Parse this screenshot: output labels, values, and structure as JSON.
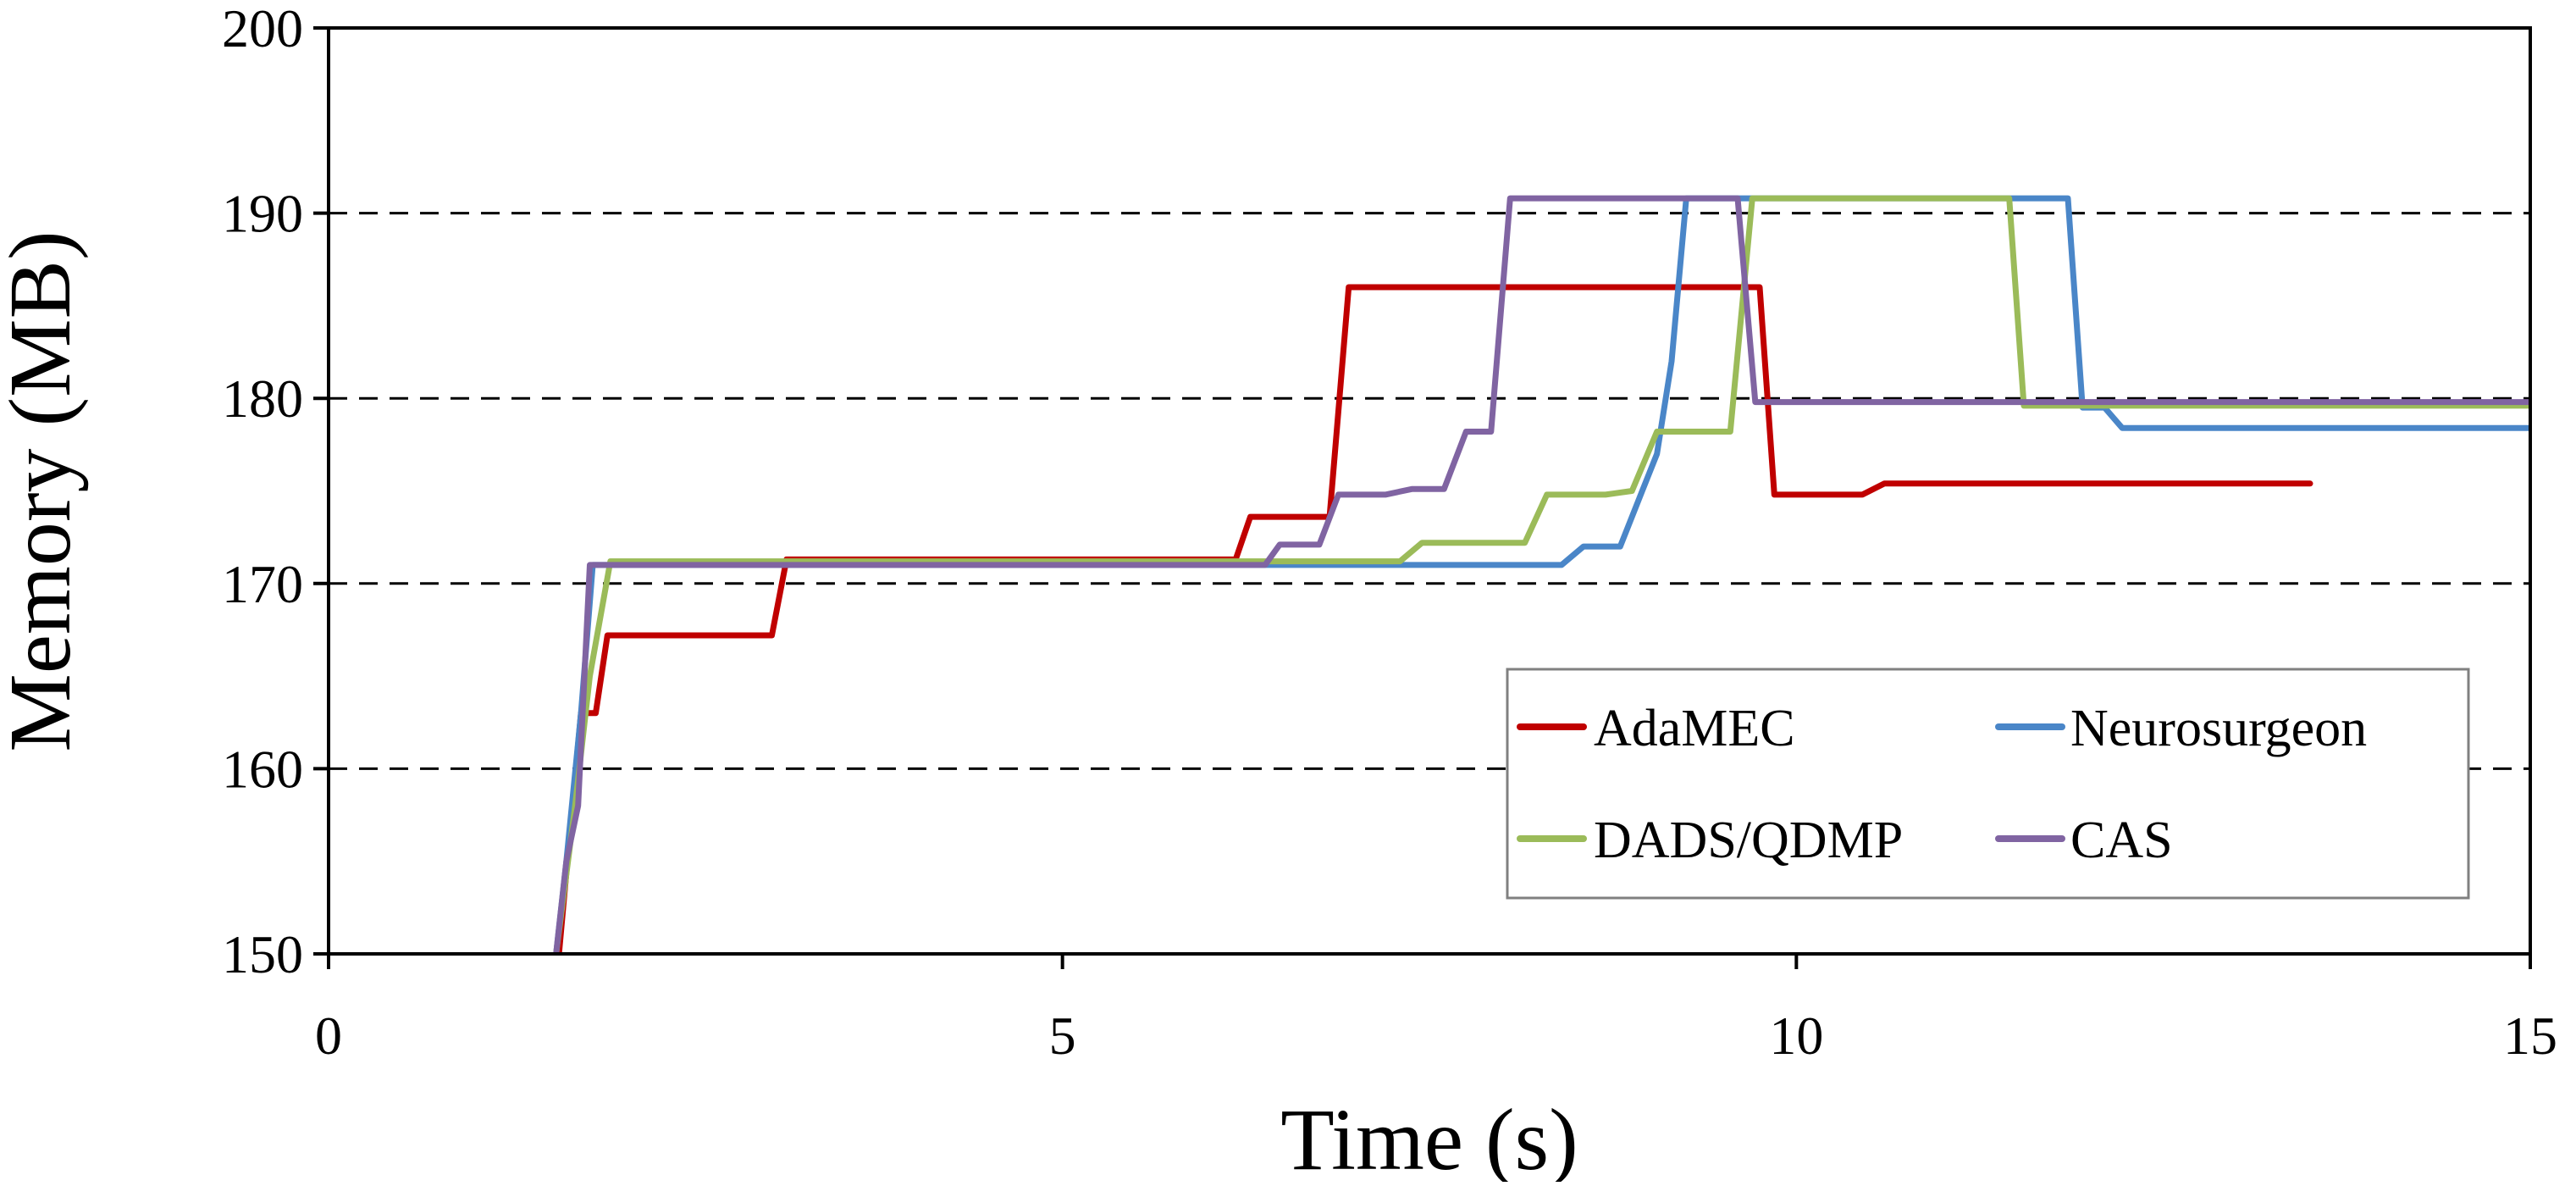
{
  "chart_data": {
    "type": "line",
    "title": "",
    "xlabel": "Time (s)",
    "ylabel": "Memory (MB)",
    "xlim": [
      0,
      15
    ],
    "ylim": [
      150,
      200
    ],
    "xticks": [
      0,
      5,
      10,
      15
    ],
    "yticks": [
      150,
      160,
      170,
      180,
      190,
      200
    ],
    "xtick_labels": [
      "0",
      "5",
      "10",
      "15"
    ],
    "ytick_labels": [
      "150",
      "160",
      "170",
      "180",
      "190",
      "200"
    ],
    "grid": "horizontal dashed at 160, 170, 180, 190",
    "legend_position": "bottom-right",
    "series": [
      {
        "name": "AdaMEC",
        "color": "#C00000",
        "points": [
          [
            1.57,
            150
          ],
          [
            1.65,
            157
          ],
          [
            1.72,
            163
          ],
          [
            1.82,
            163
          ],
          [
            1.9,
            167.2
          ],
          [
            3.02,
            167.2
          ],
          [
            3.12,
            171.3
          ],
          [
            6.18,
            171.3
          ],
          [
            6.28,
            173.6
          ],
          [
            6.82,
            173.6
          ],
          [
            6.95,
            186
          ],
          [
            9.75,
            186
          ],
          [
            9.85,
            174.8
          ],
          [
            10.45,
            174.8
          ],
          [
            10.6,
            175.4
          ],
          [
            13.5,
            175.4
          ]
        ]
      },
      {
        "name": "Neurosurgeon",
        "color": "#4A86C8",
        "points": [
          [
            1.55,
            150
          ],
          [
            1.62,
            155
          ],
          [
            1.72,
            163
          ],
          [
            1.8,
            171
          ],
          [
            8.4,
            171
          ],
          [
            8.55,
            172
          ],
          [
            8.8,
            172
          ],
          [
            8.95,
            175
          ],
          [
            9.05,
            177
          ],
          [
            9.15,
            182
          ],
          [
            9.25,
            190.8
          ],
          [
            11.85,
            190.8
          ],
          [
            11.95,
            179.5
          ],
          [
            12.1,
            179.5
          ],
          [
            12.22,
            178.4
          ],
          [
            15,
            178.4
          ]
        ]
      },
      {
        "name": "DADS/QDMP",
        "color": "#9BBB59",
        "points": [
          [
            1.55,
            150
          ],
          [
            1.68,
            158
          ],
          [
            1.78,
            165
          ],
          [
            1.92,
            171.2
          ],
          [
            7.3,
            171.2
          ],
          [
            7.45,
            172.2
          ],
          [
            8.15,
            172.2
          ],
          [
            8.3,
            174.8
          ],
          [
            8.7,
            174.8
          ],
          [
            8.88,
            175
          ],
          [
            9.05,
            178.2
          ],
          [
            9.55,
            178.2
          ],
          [
            9.7,
            190.8
          ],
          [
            11.45,
            190.8
          ],
          [
            11.55,
            179.6
          ],
          [
            15,
            179.6
          ]
        ]
      },
      {
        "name": "CAS",
        "color": "#8064A2",
        "points": [
          [
            1.55,
            150
          ],
          [
            1.62,
            155
          ],
          [
            1.7,
            158
          ],
          [
            1.78,
            171
          ],
          [
            6.38,
            171
          ],
          [
            6.48,
            172.1
          ],
          [
            6.75,
            172.1
          ],
          [
            6.88,
            174.8
          ],
          [
            7.2,
            174.8
          ],
          [
            7.38,
            175.1
          ],
          [
            7.6,
            175.1
          ],
          [
            7.75,
            178.2
          ],
          [
            7.92,
            178.2
          ],
          [
            8.05,
            190.8
          ],
          [
            9.6,
            190.8
          ],
          [
            9.72,
            179.8
          ],
          [
            15,
            179.8
          ]
        ]
      }
    ]
  }
}
